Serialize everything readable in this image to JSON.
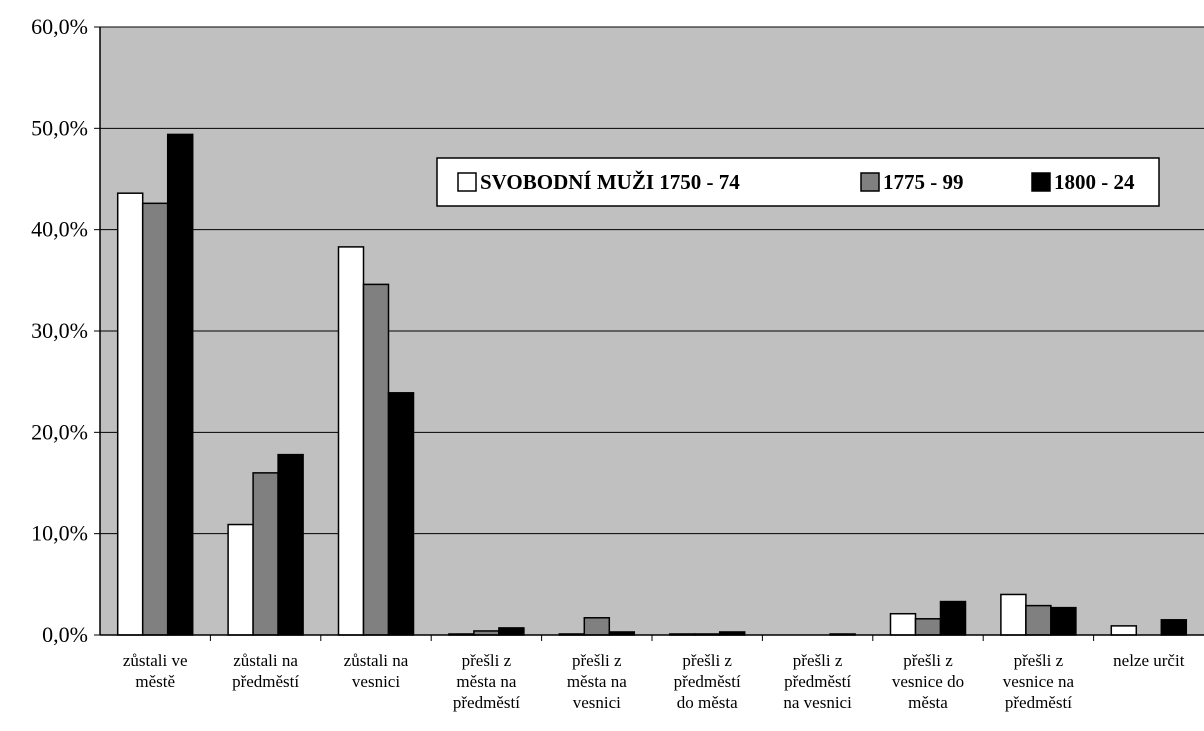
{
  "chart_data": {
    "type": "bar",
    "title": "",
    "xlabel": "",
    "ylabel": "",
    "ylim": [
      0,
      60
    ],
    "y_tick_values": [
      0,
      10,
      20,
      30,
      40,
      50,
      60
    ],
    "y_tick_labels": [
      "0,0%",
      "10,0%",
      "20,0%",
      "30,0%",
      "40,0%",
      "50,0%",
      "60,0%"
    ],
    "grid": true,
    "legend_position": "top-right",
    "plot_background": "#c0c0c0",
    "categories": [
      [
        "zůstali ve",
        "městě"
      ],
      [
        "zůstali na",
        "předměstí"
      ],
      [
        "zůstali na",
        "vesnici"
      ],
      [
        "přešli z",
        "města na",
        "předměstí"
      ],
      [
        "přešli z",
        "města na",
        "vesnici"
      ],
      [
        "přešli z",
        "předměstí",
        "do města"
      ],
      [
        "přešli z",
        "předměstí",
        "na vesnici"
      ],
      [
        "přešli z",
        "vesnice do",
        "města"
      ],
      [
        "přešli z",
        "vesnice na",
        "předměstí"
      ],
      [
        "nelze určit"
      ]
    ],
    "series": [
      {
        "name": "SVOBODNÍ MUŽI 1750 - 74",
        "color": "#ffffff",
        "values": [
          43.6,
          10.9,
          38.3,
          0.1,
          0.1,
          0.1,
          0.0,
          2.1,
          4.0,
          0.9
        ]
      },
      {
        "name": "1775 - 99",
        "color": "#808080",
        "values": [
          42.6,
          16.0,
          34.6,
          0.4,
          1.7,
          0.1,
          0.0,
          1.6,
          2.9,
          0.0
        ]
      },
      {
        "name": "1800 - 24",
        "color": "#000000",
        "values": [
          49.4,
          17.8,
          23.9,
          0.7,
          0.3,
          0.3,
          0.1,
          3.3,
          2.7,
          1.5
        ]
      }
    ]
  }
}
